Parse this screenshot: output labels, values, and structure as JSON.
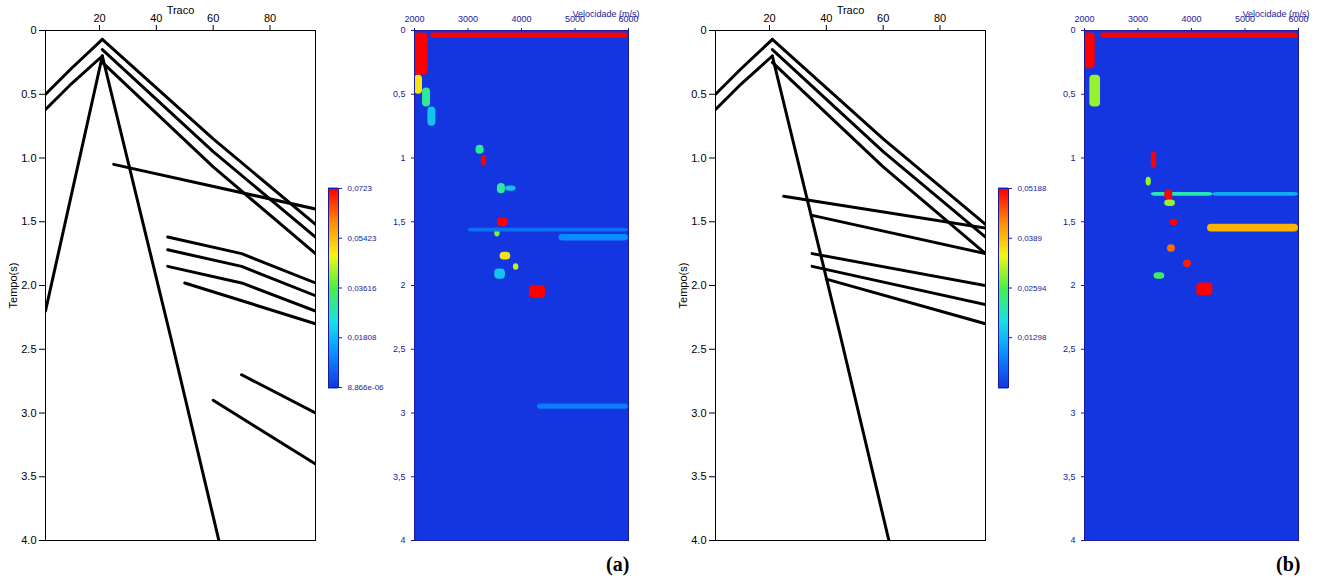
{
  "chart_data": [
    {
      "type": "seismic",
      "x_label": "Traco",
      "y_label": "Tempo(s)",
      "xlim": [
        1,
        96
      ],
      "xticks": [
        20,
        40,
        60,
        80
      ],
      "ylim": [
        0,
        4
      ],
      "yticks": [
        0,
        0.5,
        {
          "value": 1,
          "label": "1.0"
        },
        1.5,
        {
          "value": 2,
          "label": "2.0"
        },
        2.5,
        {
          "value": 3,
          "label": "3.0"
        },
        3.5,
        {
          "value": 4,
          "label": "4.0"
        }
      ],
      "events": [
        {
          "x": [
            1,
            10,
            21
          ],
          "y": [
            0.5,
            0.3,
            0.07
          ]
        },
        {
          "x": [
            1,
            10,
            21
          ],
          "y": [
            0.62,
            0.42,
            0.2
          ]
        },
        {
          "x": [
            21,
            60,
            96
          ],
          "y": [
            0.07,
            0.85,
            1.52
          ]
        },
        {
          "x": [
            21,
            60,
            96
          ],
          "y": [
            0.15,
            0.95,
            1.62
          ]
        },
        {
          "x": [
            21,
            60,
            96
          ],
          "y": [
            0.25,
            1.07,
            1.75
          ]
        },
        {
          "x": [
            21,
            45,
            62
          ],
          "y": [
            0.2,
            2.4,
            4.0
          ]
        },
        {
          "x": [
            21,
            1
          ],
          "y": [
            0.2,
            2.2
          ]
        },
        {
          "x": [
            25,
            96
          ],
          "y": [
            1.05,
            1.4
          ]
        },
        {
          "x": [
            44,
            70,
            96
          ],
          "y": [
            1.62,
            1.75,
            1.98
          ]
        },
        {
          "x": [
            44,
            70,
            96
          ],
          "y": [
            1.72,
            1.85,
            2.08
          ]
        },
        {
          "x": [
            44,
            70,
            96
          ],
          "y": [
            1.85,
            1.98,
            2.2
          ]
        },
        {
          "x": [
            50,
            96
          ],
          "y": [
            1.98,
            2.3
          ]
        },
        {
          "x": [
            70,
            96
          ],
          "y": [
            2.7,
            3.0
          ]
        },
        {
          "x": [
            60,
            96
          ],
          "y": [
            2.9,
            3.4
          ]
        }
      ]
    },
    {
      "type": "heatmap",
      "panel": "(a)",
      "x_label": "Velocidade (m/s)",
      "xlim": [
        2000,
        6000
      ],
      "xticks": [
        2000,
        3000,
        4000,
        5000,
        6000
      ],
      "ylim": [
        0,
        4
      ],
      "yticks": [
        0,
        {
          "value": 0.5,
          "label": "0,5"
        },
        1,
        {
          "value": 1.5,
          "label": "1,5"
        },
        2,
        {
          "value": 2.5,
          "label": "2,5"
        },
        3,
        {
          "value": 3.5,
          "label": "3,5"
        },
        4
      ],
      "color_range": [
        8.866e-06,
        0.0723
      ],
      "color_ticks": [
        {
          "value": 0.0723,
          "label": "0,0723"
        },
        {
          "value": 0.05423,
          "label": "0,05423"
        },
        {
          "value": 0.03616,
          "label": "0,03616"
        },
        {
          "value": 0.01808,
          "label": "0,01808"
        },
        {
          "value": 8.866e-06,
          "label": "8,866e-06"
        }
      ],
      "cells": [
        {
          "x1": 2000,
          "x2": 2250,
          "y1": 0.02,
          "y2": 0.35,
          "value": 0.0723
        },
        {
          "x1": 2000,
          "x2": 2150,
          "y1": 0.35,
          "y2": 0.5,
          "value": 0.05
        },
        {
          "x1": 2150,
          "x2": 2300,
          "y1": 0.45,
          "y2": 0.6,
          "value": 0.03
        },
        {
          "x1": 2250,
          "x2": 2400,
          "y1": 0.6,
          "y2": 0.75,
          "value": 0.02
        },
        {
          "x1": 2300,
          "x2": 6000,
          "y1": 0.02,
          "y2": 0.06,
          "value": 0.0723
        },
        {
          "x1": 3150,
          "x2": 3300,
          "y1": 0.9,
          "y2": 0.97,
          "value": 0.03
        },
        {
          "x1": 3250,
          "x2": 3350,
          "y1": 0.98,
          "y2": 1.06,
          "value": 0.0723
        },
        {
          "x1": 3550,
          "x2": 3700,
          "y1": 1.2,
          "y2": 1.28,
          "value": 0.03
        },
        {
          "x1": 3700,
          "x2": 3900,
          "y1": 1.22,
          "y2": 1.26,
          "value": 0.02
        },
        {
          "x1": 3550,
          "x2": 3750,
          "y1": 1.47,
          "y2": 1.54,
          "value": 0.0723
        },
        {
          "x1": 3500,
          "x2": 3600,
          "y1": 1.55,
          "y2": 1.62,
          "value": 0.04
        },
        {
          "x1": 3600,
          "x2": 3800,
          "y1": 1.74,
          "y2": 1.8,
          "value": 0.05
        },
        {
          "x1": 3850,
          "x2": 3950,
          "y1": 1.83,
          "y2": 1.88,
          "value": 0.045
        },
        {
          "x1": 3500,
          "x2": 3700,
          "y1": 1.87,
          "y2": 1.95,
          "value": 0.02
        },
        {
          "x1": 4150,
          "x2": 4450,
          "y1": 2.0,
          "y2": 2.1,
          "value": 0.0723
        },
        {
          "x1": 4700,
          "x2": 6000,
          "y1": 1.6,
          "y2": 1.65,
          "value": 0.012
        },
        {
          "x1": 3000,
          "x2": 6000,
          "y1": 1.55,
          "y2": 1.58,
          "value": 0.008
        },
        {
          "x1": 4300,
          "x2": 6000,
          "y1": 2.93,
          "y2": 2.97,
          "value": 0.01
        }
      ]
    },
    {
      "type": "seismic",
      "x_label": "Traco",
      "y_label": "Tempo(s)",
      "xlim": [
        1,
        96
      ],
      "xticks": [
        20,
        40,
        60,
        80
      ],
      "ylim": [
        0,
        4
      ],
      "yticks": [
        0,
        0.5,
        {
          "value": 1,
          "label": "1.0"
        },
        1.5,
        {
          "value": 2,
          "label": "2.0"
        },
        2.5,
        {
          "value": 3,
          "label": "3.0"
        },
        3.5,
        {
          "value": 4,
          "label": "4.0"
        }
      ],
      "events": [
        {
          "x": [
            1,
            10,
            21
          ],
          "y": [
            0.5,
            0.3,
            0.07
          ]
        },
        {
          "x": [
            1,
            10,
            21
          ],
          "y": [
            0.62,
            0.42,
            0.2
          ]
        },
        {
          "x": [
            21,
            60,
            96
          ],
          "y": [
            0.07,
            0.85,
            1.52
          ]
        },
        {
          "x": [
            21,
            60,
            96
          ],
          "y": [
            0.15,
            0.95,
            1.62
          ]
        },
        {
          "x": [
            21,
            60,
            96
          ],
          "y": [
            0.25,
            1.07,
            1.75
          ]
        },
        {
          "x": [
            21,
            45,
            62
          ],
          "y": [
            0.2,
            2.4,
            4.0
          ]
        },
        {
          "x": [
            25,
            96
          ],
          "y": [
            1.3,
            1.55
          ]
        },
        {
          "x": [
            35,
            96
          ],
          "y": [
            1.45,
            1.75
          ]
        },
        {
          "x": [
            35,
            96
          ],
          "y": [
            1.75,
            2.0
          ]
        },
        {
          "x": [
            35,
            96
          ],
          "y": [
            1.85,
            2.15
          ]
        },
        {
          "x": [
            40,
            96
          ],
          "y": [
            1.95,
            2.3
          ]
        }
      ]
    },
    {
      "type": "heatmap",
      "panel": "(b)",
      "x_label": "Velocidade (m/s)",
      "xlim": [
        2000,
        6000
      ],
      "xticks": [
        2000,
        3000,
        4000,
        5000,
        6000
      ],
      "ylim": [
        0,
        4
      ],
      "yticks": [
        0,
        {
          "value": 0.5,
          "label": "0,5"
        },
        1,
        {
          "value": 1.5,
          "label": "1,5"
        },
        2,
        {
          "value": 2.5,
          "label": "2,5"
        },
        3,
        {
          "value": 3.5,
          "label": "3,5"
        },
        4
      ],
      "color_range": [
        0,
        0.05188
      ],
      "color_ticks": [
        {
          "value": 0.05188,
          "label": "0,05188"
        },
        {
          "value": 0.0389,
          "label": "0,0389"
        },
        {
          "value": 0.02594,
          "label": "0,02594"
        },
        {
          "value": 0.01298,
          "label": "0,01298"
        }
      ],
      "cells": [
        {
          "x1": 2000,
          "x2": 2200,
          "y1": 0.02,
          "y2": 0.3,
          "value": 0.05188
        },
        {
          "x1": 2300,
          "x2": 6000,
          "y1": 0.02,
          "y2": 0.06,
          "value": 0.05188
        },
        {
          "x1": 2100,
          "x2": 2300,
          "y1": 0.35,
          "y2": 0.6,
          "value": 0.03
        },
        {
          "x1": 3250,
          "x2": 3350,
          "y1": 0.95,
          "y2": 1.08,
          "value": 0.05188
        },
        {
          "x1": 3150,
          "x2": 3250,
          "y1": 1.15,
          "y2": 1.22,
          "value": 0.03
        },
        {
          "x1": 3250,
          "x2": 4400,
          "y1": 1.27,
          "y2": 1.3,
          "value": 0.02
        },
        {
          "x1": 4400,
          "x2": 6000,
          "y1": 1.27,
          "y2": 1.3,
          "value": 0.012
        },
        {
          "x1": 3500,
          "x2": 3650,
          "y1": 1.25,
          "y2": 1.33,
          "value": 0.05188
        },
        {
          "x1": 3500,
          "x2": 3700,
          "y1": 1.33,
          "y2": 1.38,
          "value": 0.03
        },
        {
          "x1": 3600,
          "x2": 3750,
          "y1": 1.48,
          "y2": 1.53,
          "value": 0.05188
        },
        {
          "x1": 4300,
          "x2": 6000,
          "y1": 1.52,
          "y2": 1.58,
          "value": 0.04
        },
        {
          "x1": 3550,
          "x2": 3700,
          "y1": 1.68,
          "y2": 1.74,
          "value": 0.045
        },
        {
          "x1": 3850,
          "x2": 4000,
          "y1": 1.8,
          "y2": 1.86,
          "value": 0.05
        },
        {
          "x1": 3300,
          "x2": 3500,
          "y1": 1.9,
          "y2": 1.95,
          "value": 0.025
        },
        {
          "x1": 4100,
          "x2": 4400,
          "y1": 1.98,
          "y2": 2.08,
          "value": 0.05188
        }
      ]
    }
  ]
}
